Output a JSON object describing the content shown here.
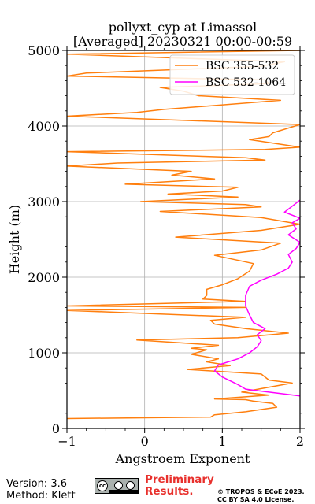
{
  "chart_data": {
    "type": "line",
    "title_line1": "pollyxt_cyp at Limassol",
    "title_line2": "[Averaged] 20230321 00:00-00:59",
    "xlabel": "Angstroem Exponent",
    "ylabel": "Height (m)",
    "xlim": [
      -1,
      2
    ],
    "ylim": [
      0,
      5000
    ],
    "xticks": [
      -1,
      0,
      1,
      2
    ],
    "yticks": [
      0,
      1000,
      2000,
      3000,
      4000,
      5000
    ],
    "grid": true,
    "legend_position": "top-right",
    "series": [
      {
        "name": "BSC 355-532",
        "color": "#ff7f0e",
        "points": [
          [
            -1.0,
            130
          ],
          [
            0.85,
            150
          ],
          [
            0.9,
            180
          ],
          [
            1.3,
            220
          ],
          [
            1.7,
            280
          ],
          [
            1.65,
            330
          ],
          [
            1.4,
            360
          ],
          [
            1.3,
            380
          ],
          [
            0.9,
            390
          ],
          [
            1.6,
            440
          ],
          [
            1.25,
            480
          ],
          [
            1.9,
            600
          ],
          [
            1.6,
            640
          ],
          [
            1.5,
            720
          ],
          [
            0.55,
            780
          ],
          [
            1.1,
            830
          ],
          [
            0.8,
            880
          ],
          [
            0.95,
            920
          ],
          [
            0.6,
            980
          ],
          [
            0.8,
            1040
          ],
          [
            0.6,
            1060
          ],
          [
            0.95,
            1100
          ],
          [
            -0.1,
            1170
          ],
          [
            1.2,
            1200
          ],
          [
            1.85,
            1260
          ],
          [
            1.3,
            1320
          ],
          [
            0.9,
            1380
          ],
          [
            0.85,
            1430
          ],
          [
            1.3,
            1470
          ],
          [
            -1.0,
            1560
          ],
          [
            1.3,
            1600
          ],
          [
            -1.0,
            1620
          ],
          [
            1.3,
            1680
          ],
          [
            0.75,
            1710
          ],
          [
            0.8,
            1760
          ],
          [
            0.8,
            1840
          ],
          [
            1.0,
            1900
          ],
          [
            1.2,
            1980
          ],
          [
            1.35,
            2080
          ],
          [
            1.4,
            2180
          ],
          [
            0.9,
            2290
          ],
          [
            1.5,
            2360
          ],
          [
            1.75,
            2450
          ],
          [
            0.4,
            2530
          ],
          [
            1.5,
            2620
          ],
          [
            2.0,
            2700
          ],
          [
            1.5,
            2790
          ],
          [
            0.2,
            2870
          ],
          [
            1.5,
            2930
          ],
          [
            1.3,
            2960
          ],
          [
            -0.05,
            3000
          ],
          [
            1.2,
            3060
          ],
          [
            0.3,
            3100
          ],
          [
            1.0,
            3140
          ],
          [
            1.2,
            3190
          ],
          [
            -0.25,
            3230
          ],
          [
            0.9,
            3300
          ],
          [
            0.35,
            3350
          ],
          [
            0.6,
            3400
          ],
          [
            -1.0,
            3470
          ],
          [
            -0.35,
            3510
          ],
          [
            1.55,
            3550
          ],
          [
            1.3,
            3580
          ],
          [
            -1.0,
            3660
          ],
          [
            1.55,
            3690
          ],
          [
            2.0,
            3720
          ],
          [
            1.35,
            3820
          ],
          [
            1.6,
            3860
          ],
          [
            1.65,
            3910
          ],
          [
            2.0,
            4020
          ],
          [
            -1.0,
            4130
          ],
          [
            -0.1,
            4180
          ],
          [
            0.25,
            4220
          ],
          [
            1.75,
            4340
          ],
          [
            0.7,
            4400
          ],
          [
            0.5,
            4460
          ],
          [
            0.2,
            4510
          ],
          [
            1.6,
            4560
          ],
          [
            1.55,
            4610
          ],
          [
            -1.0,
            4660
          ],
          [
            -0.75,
            4700
          ],
          [
            1.5,
            4790
          ],
          [
            1.8,
            4850
          ],
          [
            -1.0,
            4950
          ],
          [
            2.0,
            5000
          ]
        ]
      },
      {
        "name": "BSC 532-1064",
        "color": "#ff00ff",
        "points": [
          [
            2.0,
            430
          ],
          [
            1.6,
            480
          ],
          [
            1.3,
            520
          ],
          [
            1.2,
            580
          ],
          [
            1.0,
            680
          ],
          [
            0.9,
            760
          ],
          [
            0.95,
            840
          ],
          [
            1.2,
            920
          ],
          [
            1.35,
            1000
          ],
          [
            1.45,
            1080
          ],
          [
            1.5,
            1160
          ],
          [
            1.45,
            1240
          ],
          [
            1.55,
            1320
          ],
          [
            1.4,
            1400
          ],
          [
            1.35,
            1500
          ],
          [
            1.3,
            1620
          ],
          [
            1.3,
            1760
          ],
          [
            1.35,
            1880
          ],
          [
            1.5,
            1960
          ],
          [
            1.7,
            2040
          ],
          [
            1.85,
            2120
          ],
          [
            1.9,
            2200
          ],
          [
            1.85,
            2300
          ],
          [
            1.95,
            2380
          ],
          [
            2.0,
            2460
          ],
          [
            1.85,
            2560
          ],
          [
            1.95,
            2640
          ],
          [
            1.9,
            2720
          ],
          [
            2.0,
            2780
          ],
          [
            1.8,
            2860
          ],
          [
            1.9,
            2940
          ],
          [
            2.0,
            3020
          ]
        ]
      }
    ]
  },
  "footer": {
    "version": "Version: 3.6",
    "method": "Method: Klett",
    "license_badge": [
      "cc",
      "BY",
      "SA"
    ],
    "preliminary": "Preliminary Results.",
    "copyright_line1": "© TROPOS & ECoE 2023.",
    "copyright_line2": "CC BY SA 4.0 License."
  }
}
